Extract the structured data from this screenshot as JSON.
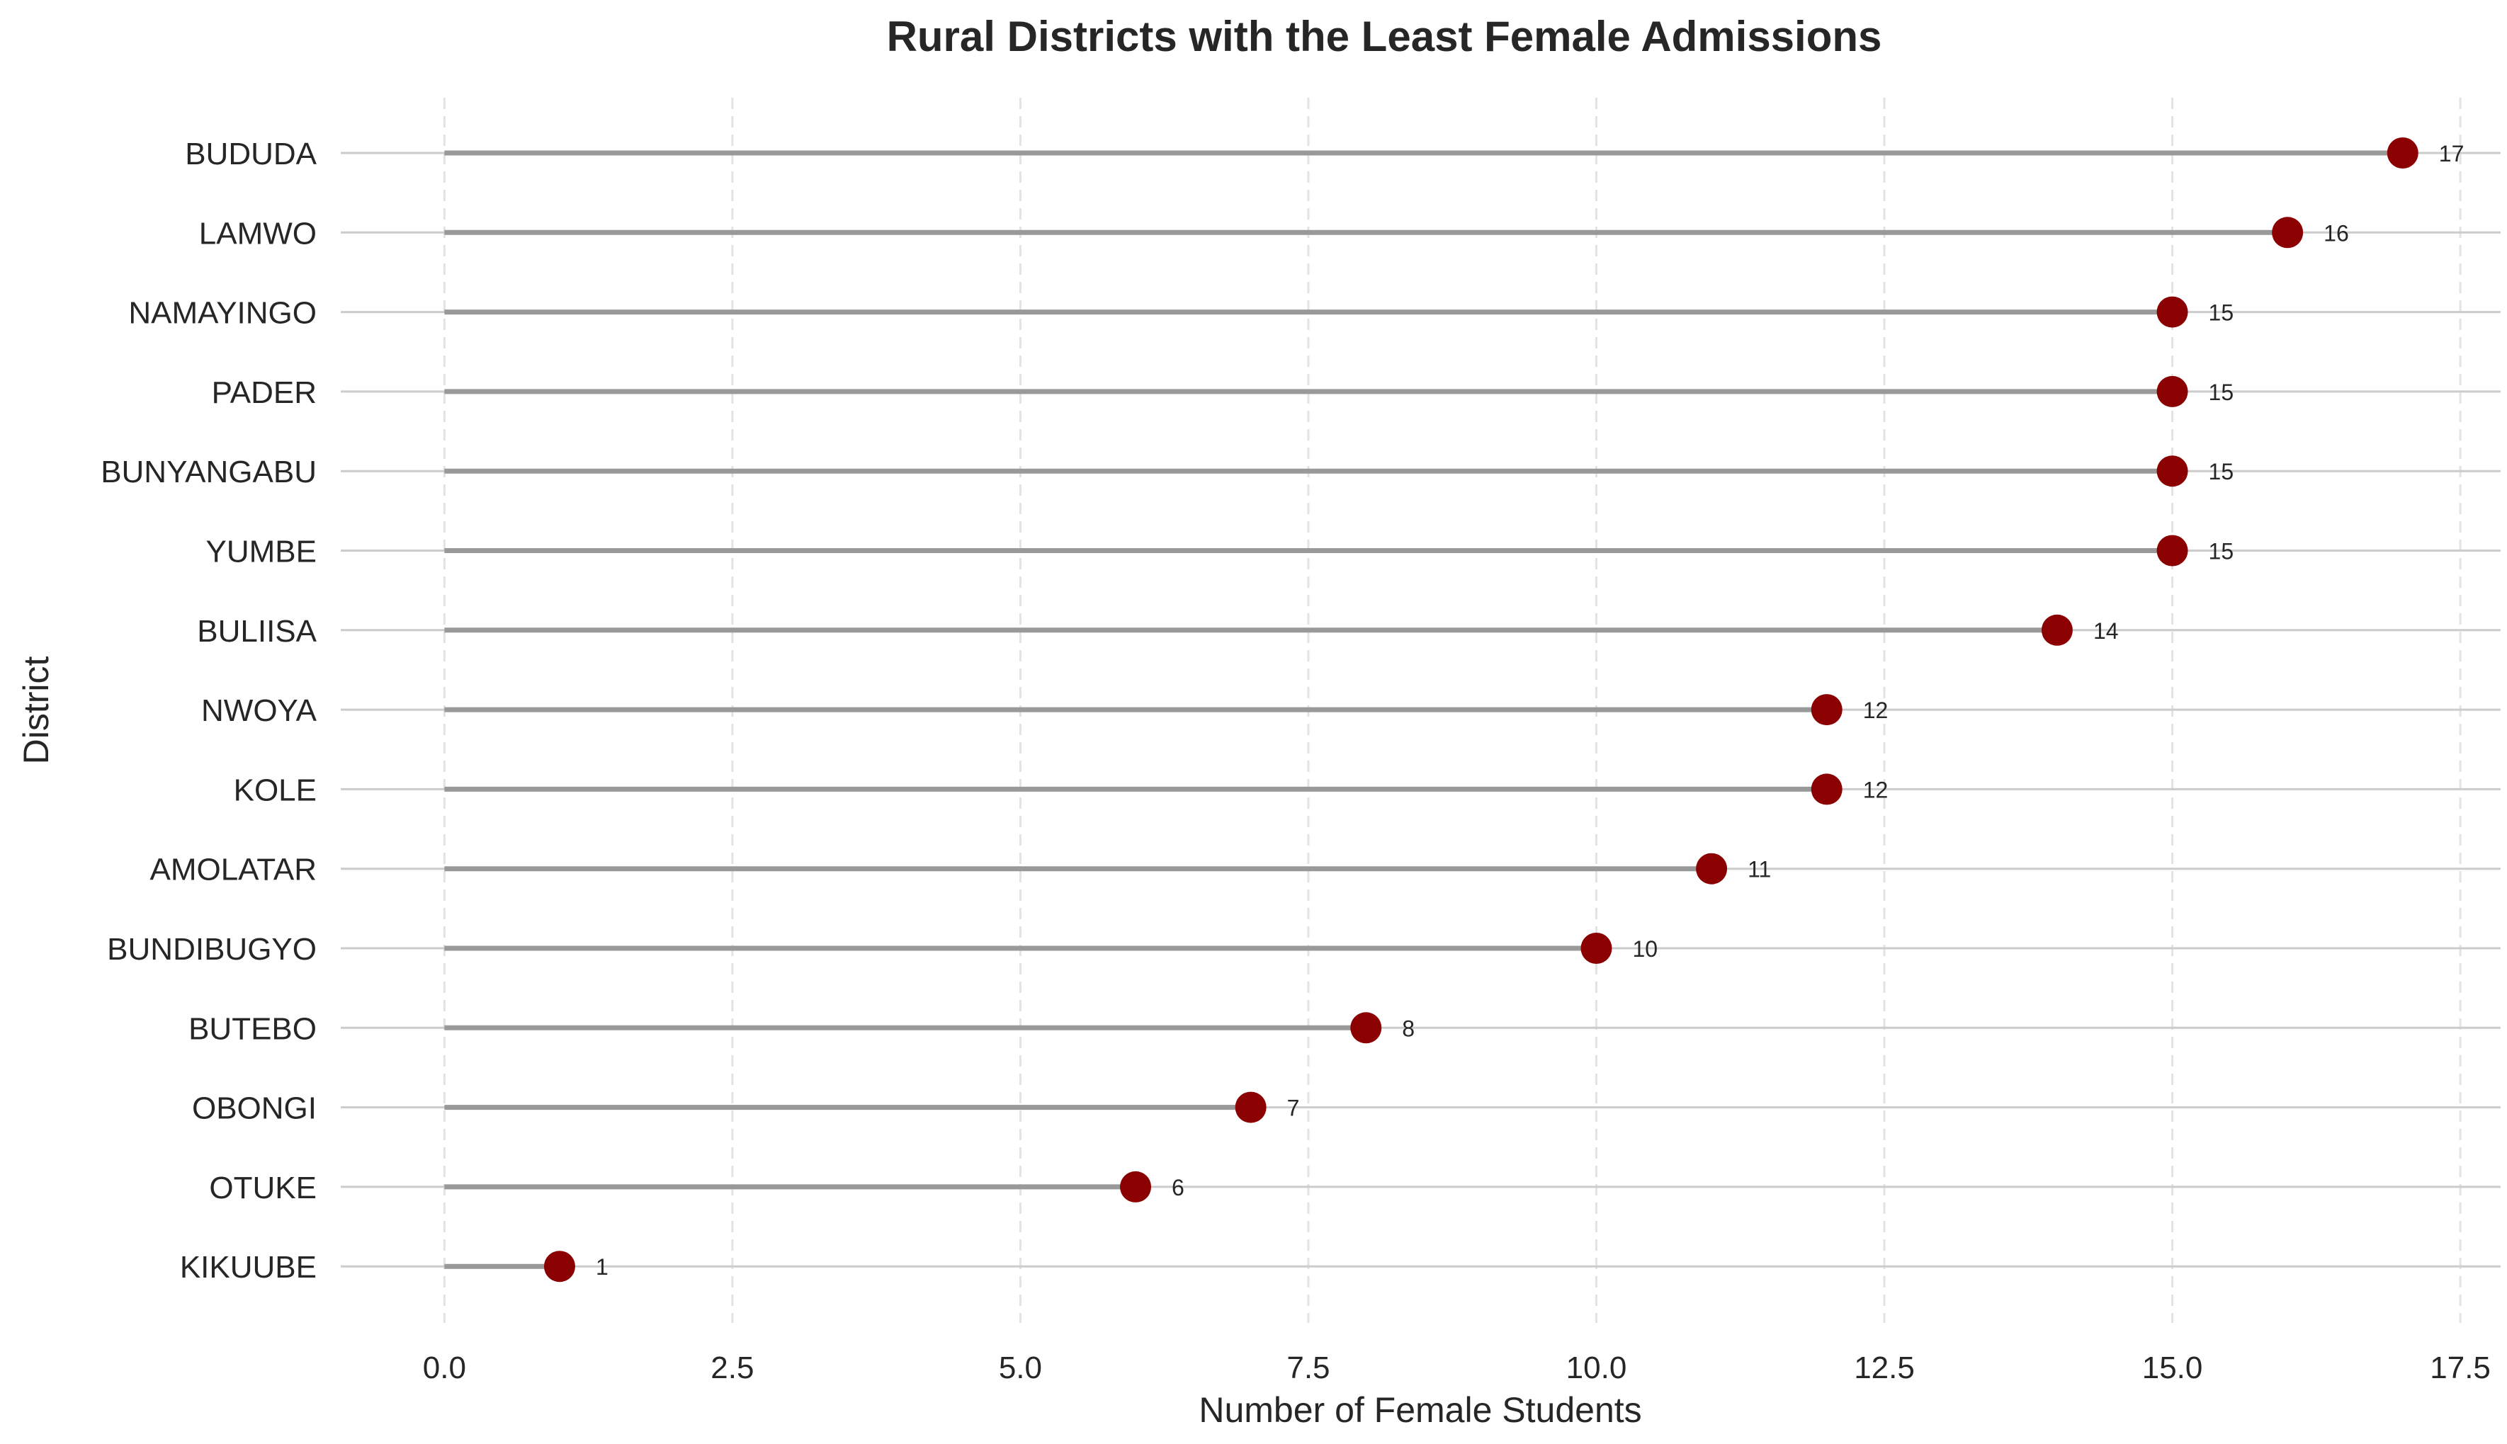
{
  "chart_data": {
    "type": "lollipop",
    "title": "Rural Districts with the Least Female Admissions",
    "xlabel": "Number of Female Students",
    "ylabel": "District",
    "xlim": [
      -0.9,
      17.85
    ],
    "xticks": [
      0.0,
      2.5,
      5.0,
      7.5,
      10.0,
      12.5,
      15.0,
      17.5
    ],
    "xtick_labels": [
      "0.0",
      "2.5",
      "5.0",
      "7.5",
      "10.0",
      "12.5",
      "15.0",
      "17.5"
    ],
    "grid": {
      "vertical": "dashed",
      "horizontal": "solid"
    },
    "stem_color": "#999999",
    "marker_color": "#8b0000",
    "categories": [
      "BUDUDA",
      "LAMWO",
      "NAMAYINGO",
      "PADER",
      "BUNYANGABU",
      "YUMBE",
      "BULIISA",
      "NWOYA",
      "KOLE",
      "AMOLATAR",
      "BUNDIBUGYO",
      "BUTEBO",
      "OBONGI",
      "OTUKE",
      "KIKUUBE"
    ],
    "values": [
      17,
      16,
      15,
      15,
      15,
      15,
      14,
      12,
      12,
      11,
      10,
      8,
      7,
      6,
      1
    ],
    "data_labels": [
      "17",
      "16",
      "15",
      "15",
      "15",
      "15",
      "14",
      "12",
      "12",
      "11",
      "10",
      "8",
      "7",
      "6",
      "1"
    ]
  }
}
